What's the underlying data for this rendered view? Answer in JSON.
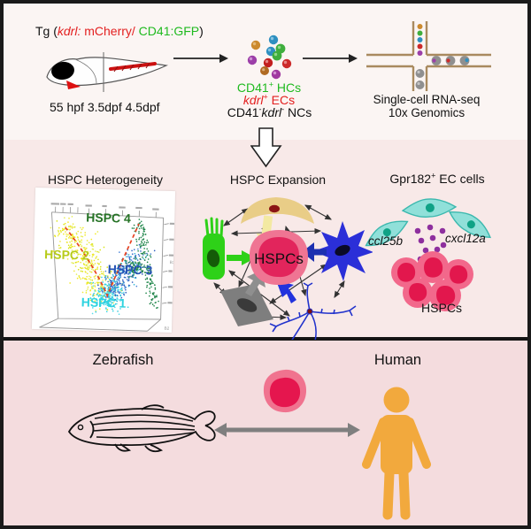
{
  "top": {
    "tg": {
      "p1": "Tg (",
      "p2": "kdrl:",
      "p3": " mCherry/",
      "p4": " CD41:GFP",
      "p5": ")"
    },
    "timepoints": "55 hpf  3.5dpf  4.5dpf",
    "cells": {
      "hc_gene": "CD41",
      "hc_sup": "+",
      "hc_rest": " HCs",
      "ec_gene": "kdrl",
      "ec_sup": "+",
      "ec_rest": " ECs",
      "nc_p1": "CD41",
      "nc_s1": "-",
      "nc_p2": "kdrl",
      "nc_s2": "-",
      "nc_rest": " NCs"
    },
    "seq1": "Single-cell RNA-seq",
    "seq2": "10x Genomics"
  },
  "middle": {
    "het_title": "HSPC Heterogeneity",
    "cluster4": "HSPC 4",
    "cluster2": "HSPC 2",
    "cluster3": "HSPC 3",
    "cluster1": "HSPC 1",
    "axis_right": "B3",
    "axis_bottom": "B2",
    "exp_title": "HSPC Expansion",
    "hspcs_center": "HSPCs",
    "ec_title_gene": "Gpr182",
    "ec_title_sup": "+",
    "ec_title_rest": " EC cells",
    "ligand_left": "ccl25b",
    "ligand_right": "cxcl12a",
    "ec_hspcs": "HSPCs"
  },
  "bottom": {
    "zebrafish": "Zebrafish",
    "human": "Human"
  },
  "colors": {
    "gfp_green": "#1fba1f",
    "mcherry_red": "#e32020",
    "cluster4_green": "#267326",
    "cluster2_yellowgreen": "#b7cb1a",
    "cluster3_blue": "#2553b5",
    "cluster1_cyan": "#2fd3e0",
    "hspc_outer_pink": "#ef7593",
    "hspc_inner_crimson": "#e2255c",
    "ec_cyan": "#90e0d9",
    "ligand_purple": "#8e2f9e",
    "human_orange": "#f2a93d",
    "panel_mid_pink": "#f8e9e8",
    "panel_bottom_pink": "#f4dcde"
  }
}
